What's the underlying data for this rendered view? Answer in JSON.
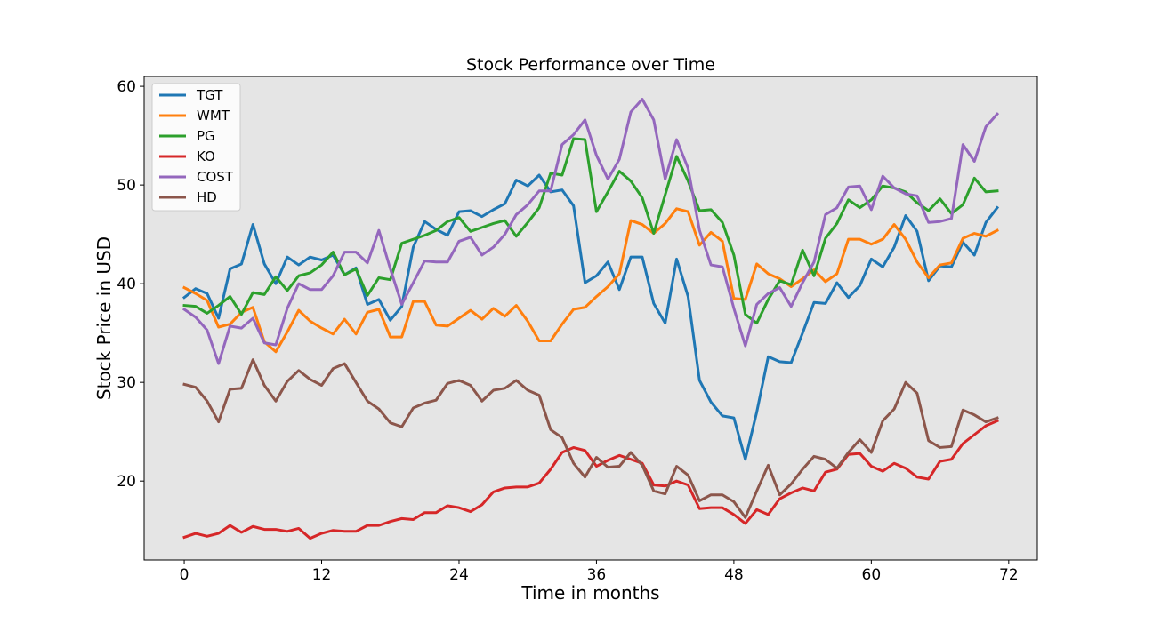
{
  "chart_data": {
    "type": "line",
    "title": "Stock Performance over Time",
    "xlabel": "Time in months",
    "ylabel": "Stock Price in USD",
    "xlim": [
      -3.5,
      74.5
    ],
    "ylim": [
      12.0,
      61.0
    ],
    "xticks": [
      0,
      12,
      24,
      36,
      48,
      60,
      72
    ],
    "yticks": [
      20,
      30,
      40,
      50,
      60
    ],
    "grid": false,
    "plot_background": "#e5e5e5",
    "legend_position": "upper-left",
    "x": [
      0,
      1,
      2,
      3,
      4,
      5,
      6,
      7,
      8,
      9,
      10,
      11,
      12,
      13,
      14,
      15,
      16,
      17,
      18,
      19,
      20,
      21,
      22,
      23,
      24,
      25,
      26,
      27,
      28,
      29,
      30,
      31,
      32,
      33,
      34,
      35,
      36,
      37,
      38,
      39,
      40,
      41,
      42,
      43,
      44,
      45,
      46,
      47,
      48,
      49,
      50,
      51,
      52,
      53,
      54,
      55,
      56,
      57,
      58,
      59,
      60,
      61,
      62,
      63,
      64,
      65,
      66,
      67,
      68,
      69,
      70,
      71
    ],
    "series": [
      {
        "name": "TGT",
        "color": "#1f77b4",
        "values": [
          38.6,
          39.5,
          39.0,
          36.5,
          41.5,
          42.0,
          46.0,
          42.0,
          40.0,
          42.7,
          41.9,
          42.7,
          42.4,
          42.9,
          40.9,
          41.6,
          37.9,
          38.4,
          36.3,
          37.7,
          43.7,
          46.3,
          45.5,
          44.9,
          47.3,
          47.4,
          46.8,
          47.5,
          48.1,
          50.5,
          49.9,
          51.0,
          49.3,
          49.5,
          47.9,
          40.1,
          40.8,
          42.2,
          39.4,
          42.7,
          42.7,
          38.0,
          36.0,
          42.5,
          38.7,
          30.2,
          28.0,
          26.6,
          26.4,
          22.2,
          27.0,
          32.6,
          32.1,
          32.0,
          35.0,
          38.1,
          38.0,
          40.1,
          38.6,
          39.8,
          42.5,
          41.7,
          43.7,
          46.9,
          45.3,
          40.3,
          41.8,
          41.7,
          44.2,
          42.9,
          46.2,
          47.7
        ]
      },
      {
        "name": "WMT",
        "color": "#ff7f0e",
        "values": [
          39.6,
          39.0,
          38.3,
          35.6,
          35.9,
          37.1,
          37.6,
          34.1,
          33.1,
          35.1,
          37.3,
          36.2,
          35.5,
          34.9,
          36.4,
          34.9,
          37.1,
          37.4,
          34.6,
          34.6,
          38.2,
          38.2,
          35.8,
          35.7,
          36.5,
          37.3,
          36.4,
          37.5,
          36.7,
          37.8,
          36.2,
          34.2,
          34.2,
          35.9,
          37.4,
          37.6,
          38.7,
          39.7,
          41.0,
          46.4,
          46.0,
          45.1,
          46.1,
          47.6,
          47.3,
          43.9,
          45.2,
          44.3,
          38.5,
          38.4,
          42.0,
          41.0,
          40.5,
          39.7,
          40.5,
          41.4,
          40.2,
          41.0,
          44.5,
          44.5,
          44.0,
          44.5,
          46.0,
          44.5,
          42.2,
          40.6,
          41.9,
          42.1,
          44.6,
          45.1,
          44.8,
          45.4
        ]
      },
      {
        "name": "PG",
        "color": "#2ca02c",
        "values": [
          37.8,
          37.7,
          37.0,
          37.8,
          38.7,
          36.9,
          39.1,
          38.9,
          40.7,
          39.3,
          40.8,
          41.1,
          41.9,
          43.2,
          40.9,
          41.5,
          38.8,
          40.6,
          40.4,
          44.1,
          44.5,
          44.9,
          45.4,
          46.3,
          46.7,
          45.3,
          45.7,
          46.1,
          46.4,
          44.8,
          46.2,
          47.7,
          51.2,
          51.0,
          54.7,
          54.6,
          47.3,
          49.3,
          51.4,
          50.4,
          48.7,
          45.1,
          49.0,
          52.9,
          50.4,
          47.4,
          47.5,
          46.2,
          42.9,
          36.9,
          36.0,
          38.4,
          40.3,
          39.9,
          43.4,
          40.8,
          44.6,
          46.1,
          48.5,
          47.7,
          48.5,
          49.9,
          49.7,
          49.3,
          48.2,
          47.4,
          48.6,
          47.1,
          48.0,
          50.7,
          49.3,
          49.4
        ]
      },
      {
        "name": "KO",
        "color": "#d62728",
        "values": [
          14.3,
          14.7,
          14.4,
          14.7,
          15.5,
          14.8,
          15.4,
          15.1,
          15.1,
          14.9,
          15.2,
          14.2,
          14.7,
          15.0,
          14.9,
          14.9,
          15.5,
          15.5,
          15.9,
          16.2,
          16.1,
          16.8,
          16.8,
          17.5,
          17.3,
          16.9,
          17.6,
          18.9,
          19.3,
          19.4,
          19.4,
          19.8,
          21.2,
          22.9,
          23.4,
          23.1,
          21.5,
          22.1,
          22.6,
          22.2,
          21.8,
          19.6,
          19.5,
          20.0,
          19.6,
          17.2,
          17.3,
          17.3,
          16.6,
          15.7,
          17.1,
          16.6,
          18.2,
          18.8,
          19.3,
          19.0,
          20.9,
          21.2,
          22.7,
          22.8,
          21.5,
          21.0,
          21.8,
          21.3,
          20.4,
          20.2,
          22.0,
          22.2,
          23.8,
          24.7,
          25.6,
          26.1
        ]
      },
      {
        "name": "COST",
        "color": "#9467bd",
        "values": [
          37.4,
          36.6,
          35.3,
          31.9,
          35.7,
          35.5,
          36.5,
          34.0,
          33.8,
          37.5,
          40.0,
          39.4,
          39.4,
          40.8,
          43.2,
          43.2,
          42.1,
          45.4,
          41.5,
          37.9,
          40.1,
          42.3,
          42.2,
          42.2,
          44.3,
          44.7,
          42.9,
          43.7,
          45.0,
          47.0,
          48.0,
          49.4,
          49.4,
          54.1,
          55.1,
          56.6,
          53.0,
          50.6,
          52.6,
          57.4,
          58.7,
          56.6,
          50.6,
          54.6,
          51.7,
          45.4,
          41.9,
          41.7,
          37.5,
          33.7,
          37.9,
          39.0,
          39.6,
          37.7,
          40.1,
          42.2,
          47.0,
          47.7,
          49.8,
          49.9,
          47.5,
          50.9,
          49.7,
          49.1,
          48.9,
          46.2,
          46.3,
          46.6,
          54.1,
          52.4,
          55.9,
          57.2
        ]
      },
      {
        "name": "HD",
        "color": "#8c564b",
        "values": [
          29.8,
          29.5,
          28.1,
          26.0,
          29.3,
          29.4,
          32.3,
          29.7,
          28.1,
          30.1,
          31.2,
          30.3,
          29.7,
          31.4,
          31.9,
          30.0,
          28.1,
          27.3,
          25.9,
          25.5,
          27.4,
          27.9,
          28.2,
          29.9,
          30.2,
          29.7,
          28.1,
          29.2,
          29.4,
          30.2,
          29.2,
          28.7,
          25.2,
          24.4,
          21.8,
          20.4,
          22.4,
          21.4,
          21.5,
          22.9,
          21.6,
          19.0,
          18.7,
          21.5,
          20.6,
          18.0,
          18.6,
          18.6,
          17.9,
          16.3,
          19.0,
          21.6,
          18.6,
          19.7,
          21.2,
          22.5,
          22.2,
          21.3,
          22.9,
          24.2,
          22.9,
          26.1,
          27.3,
          30.0,
          28.9,
          24.1,
          23.4,
          23.5,
          27.2,
          26.7,
          26.0,
          26.4
        ]
      }
    ]
  }
}
